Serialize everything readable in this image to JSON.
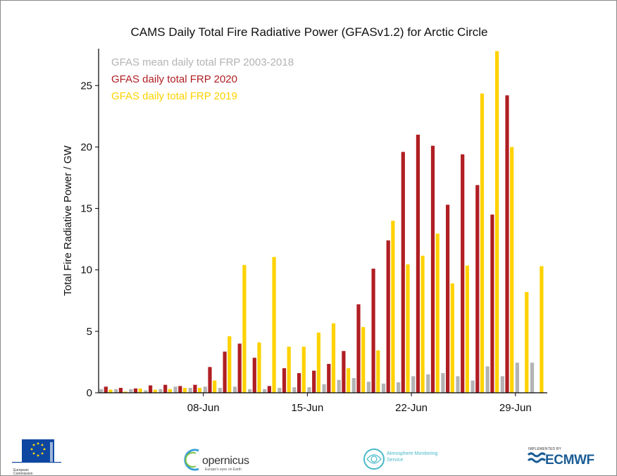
{
  "chart_data": {
    "type": "bar",
    "title": "CAMS Daily Total Fire Radiative Power (GFASv1.2) for Arctic Circle",
    "ylabel": "Total Fire Radiative Power / GW",
    "xlabel": "",
    "ylim": [
      0,
      28
    ],
    "yticks": [
      0,
      5,
      10,
      15,
      20,
      25
    ],
    "xtick_labels": [
      {
        "day_index": 7,
        "label": "08-Jun"
      },
      {
        "day_index": 14,
        "label": "15-Jun"
      },
      {
        "day_index": 21,
        "label": "22-Jun"
      },
      {
        "day_index": 28,
        "label": "29-Jun"
      }
    ],
    "categories": [
      "01-Jun",
      "02-Jun",
      "03-Jun",
      "04-Jun",
      "05-Jun",
      "06-Jun",
      "07-Jun",
      "08-Jun",
      "09-Jun",
      "10-Jun",
      "11-Jun",
      "12-Jun",
      "13-Jun",
      "14-Jun",
      "15-Jun",
      "16-Jun",
      "17-Jun",
      "18-Jun",
      "19-Jun",
      "20-Jun",
      "21-Jun",
      "22-Jun",
      "23-Jun",
      "24-Jun",
      "25-Jun",
      "26-Jun",
      "27-Jun",
      "28-Jun",
      "29-Jun",
      "30-Jun"
    ],
    "series": [
      {
        "name": "GFAS mean daily total FRP 2003-2018",
        "color": "#b3b3b3",
        "values": [
          0.3,
          0.3,
          0.3,
          0.2,
          0.3,
          0.5,
          0.4,
          0.5,
          0.4,
          0.5,
          0.3,
          0.3,
          0.4,
          0.45,
          0.45,
          0.7,
          1.05,
          1.2,
          0.9,
          0.75,
          0.85,
          1.35,
          1.5,
          1.6,
          1.35,
          1.0,
          2.15,
          1.35,
          2.45,
          2.45
        ]
      },
      {
        "name": "GFAS daily total FRP 2020",
        "color": "#b01e23",
        "values": [
          0.5,
          0.4,
          0.35,
          0.6,
          0.65,
          0.55,
          0.65,
          2.1,
          3.35,
          4.0,
          2.85,
          0.55,
          2.0,
          1.6,
          1.8,
          2.35,
          3.4,
          7.2,
          10.1,
          12.4,
          19.6,
          21.0,
          20.1,
          15.3,
          19.4,
          16.9,
          14.5,
          24.2,
          null,
          null
        ]
      },
      {
        "name": "GFAS daily total FRP 2019",
        "color": "#ffd200",
        "values": [
          0.25,
          0.1,
          0.35,
          0.25,
          0.3,
          0.4,
          0.4,
          1.0,
          4.6,
          10.4,
          4.1,
          11.05,
          3.75,
          3.75,
          4.9,
          5.65,
          2.0,
          5.35,
          3.45,
          14.0,
          10.45,
          11.15,
          12.95,
          8.9,
          10.35,
          24.35,
          27.8,
          20.0,
          8.2,
          10.3
        ]
      }
    ],
    "legend": {
      "placement": "top-left",
      "frame": false
    }
  },
  "footer": {
    "ec_label": "European Commission",
    "copernicus_label": "opernicus",
    "copernicus_tagline": "Europe's eyes on Earth",
    "ams_label": "Atmosphere Monitoring Service",
    "ecmwf_small": "IMPLEMENTED BY",
    "ecmwf_label": "ECMWF"
  }
}
